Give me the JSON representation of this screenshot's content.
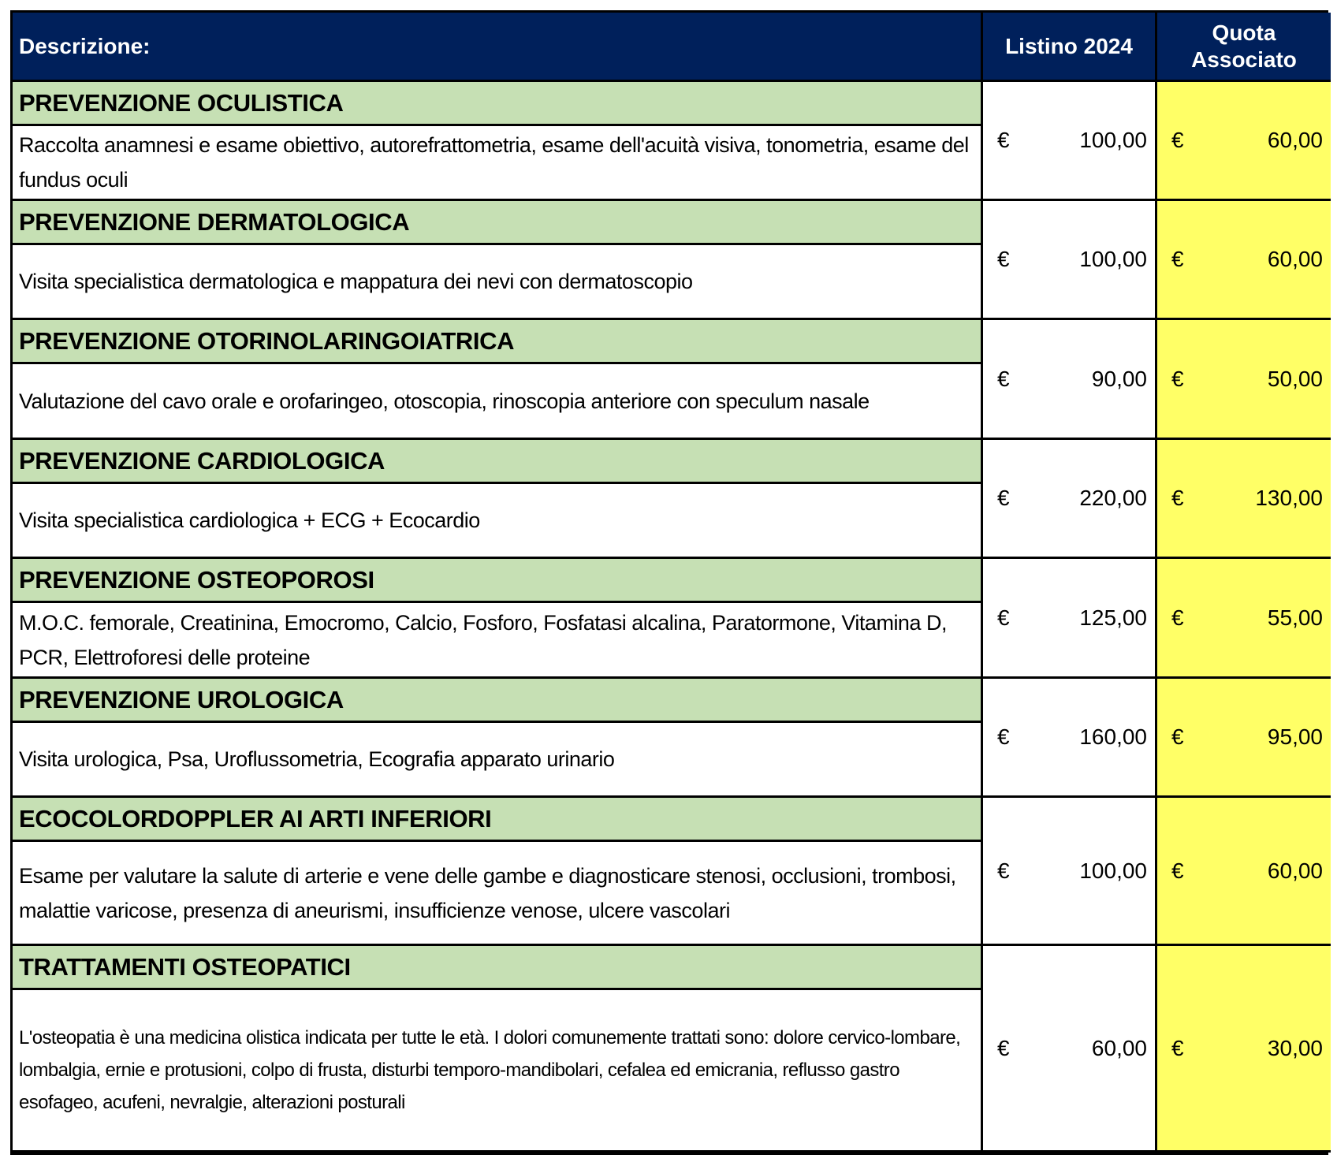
{
  "header": {
    "description": "Descrizione:",
    "list_price": "Listino 2024",
    "member_fee": "Quota Associato"
  },
  "currency": "€",
  "colors": {
    "header_bg": "#00205b",
    "title_bg": "#c6e0b4",
    "member_bg": "#ffff66"
  },
  "items": [
    {
      "title": "PREVENZIONE OCULISTICA",
      "description": "Raccolta anamnesi e esame obiettivo, autorefrattometria, esame dell'acuità visiva, tonometria, esame del fundus oculi",
      "list_price": "100,00",
      "member_price": "60,00"
    },
    {
      "title": "PREVENZIONE DERMATOLOGICA",
      "description": "Visita specialistica dermatologica e mappatura dei nevi con dermatoscopio",
      "list_price": "100,00",
      "member_price": "60,00"
    },
    {
      "title": "PREVENZIONE OTORINOLARINGOIATRICA",
      "description": "Valutazione del cavo orale e orofaringeo, otoscopia, rinoscopia anteriore con speculum nasale",
      "list_price": "90,00",
      "member_price": "50,00"
    },
    {
      "title": "PREVENZIONE CARDIOLOGICA",
      "description": "Visita specialistica cardiologica + ECG + Ecocardio",
      "list_price": "220,00",
      "member_price": "130,00"
    },
    {
      "title": "PREVENZIONE OSTEOPOROSI",
      "description": "M.O.C. femorale, Creatinina, Emocromo, Calcio, Fosforo, Fosfatasi alcalina, Paratormone, Vitamina D, PCR, Elettroforesi delle proteine",
      "list_price": "125,00",
      "member_price": "55,00"
    },
    {
      "title": "PREVENZIONE UROLOGICA",
      "description": "Visita urologica, Psa, Uroflussometria, Ecografia apparato urinario",
      "list_price": "160,00",
      "member_price": "95,00"
    },
    {
      "title": "ECOCOLORDOPPLER AI ARTI INFERIORI",
      "description": "Esame per valutare la salute di arterie e vene delle gambe e diagnosticare stenosi, occlusioni, trombosi, malattie varicose, presenza di aneurismi, insufficienze venose, ulcere vascolari",
      "list_price": "100,00",
      "member_price": "60,00"
    },
    {
      "title": "TRATTAMENTI OSTEOPATICI",
      "description": "L'osteopatia è una medicina olistica indicata per tutte le età. I dolori comunemente trattati sono: dolore cervico-lombare, lombalgia, ernie e protusioni, colpo di frusta, disturbi temporo-mandibolari, cefalea ed emicrania, reflusso gastro esofageo, acufeni, nevralgie, alterazioni posturali",
      "list_price": "60,00",
      "member_price": "30,00"
    }
  ]
}
